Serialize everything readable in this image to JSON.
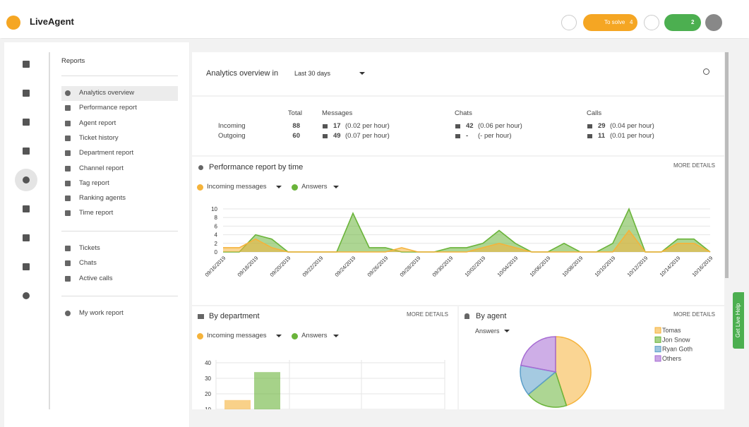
{
  "header": {
    "logo": "LiveAgent",
    "to_solve": "To solve",
    "to_solve_count": 4,
    "calls_count": 2
  },
  "sidebar": {
    "title": "Reports",
    "reports": [
      "Analytics overview",
      "Performance report",
      "Agent report",
      "Ticket history",
      "Department report",
      "Channel report",
      "Tag report",
      "Ranking agents",
      "Time report"
    ],
    "live": [
      "Tickets",
      "Chats",
      "Active calls"
    ],
    "personal": [
      "My work report"
    ]
  },
  "overview": {
    "title": "Analytics overview in",
    "period": "Last 30 days"
  },
  "stats": {
    "headers": [
      "Total",
      "Messages",
      "Chats",
      "Calls"
    ],
    "rows": [
      {
        "label": "Incoming",
        "total": 88,
        "messages": 17,
        "messages_rate": "(0.02 per hour)",
        "chats": 42,
        "chats_rate": "(0.06 per hour)",
        "calls": 29,
        "calls_rate": "(0.04 per hour)"
      },
      {
        "label": "Outgoing",
        "total": 60,
        "messages": 49,
        "messages_rate": "(0.07 per hour)",
        "chats": "-",
        "chats_rate": "(- per hour)",
        "calls": 11,
        "calls_rate": "(0.01 per hour)"
      }
    ]
  },
  "chart_data": [
    {
      "type": "area",
      "title": "Performance report by time",
      "link": "MORE DETAILS",
      "categories": [
        "09/16/2019",
        null,
        "09/18/2019",
        null,
        "09/20/2019",
        null,
        "09/22/2019",
        null,
        "09/24/2019",
        null,
        "09/26/2019",
        null,
        "09/28/2019",
        null,
        "09/30/2019",
        null,
        "10/02/2019",
        null,
        "10/04/2019",
        null,
        "10/06/2019",
        null,
        "10/08/2019",
        null,
        "10/10/2019",
        null,
        "10/12/2019",
        null,
        "10/14/2019",
        null,
        "10/16/2019"
      ],
      "series": [
        {
          "name": "Answers",
          "color": "#6ab43a",
          "values": [
            0,
            0,
            4,
            3,
            0,
            0,
            0,
            0,
            9,
            1,
            1,
            0,
            0,
            0,
            1,
            1,
            2,
            5,
            2,
            0,
            0,
            2,
            0,
            0,
            2,
            10,
            0,
            0,
            3,
            3,
            0
          ]
        },
        {
          "name": "Incoming messages",
          "color": "#f5b33a",
          "values": [
            1,
            1,
            3,
            1,
            0,
            0,
            0,
            0,
            0,
            0,
            0,
            1,
            0,
            0,
            0,
            0,
            1,
            2,
            1,
            0,
            0,
            0,
            0,
            0,
            0,
            5,
            0,
            0,
            2,
            2,
            0
          ]
        }
      ],
      "ylim": [
        0,
        10
      ],
      "yticks": [
        0,
        2,
        4,
        6,
        8,
        10
      ],
      "grid": true
    },
    {
      "type": "bar",
      "title": "By department",
      "link": "MORE DETAILS",
      "categories": [
        null
      ],
      "series": [
        {
          "name": "Incoming messages",
          "color": "#f5b33a",
          "values": [
            16
          ]
        },
        {
          "name": "Answers",
          "color": "#6ab43a",
          "values": [
            34
          ]
        }
      ],
      "ylim": [
        0,
        40
      ],
      "yticks": [
        10,
        20,
        30,
        40
      ],
      "grid": true
    },
    {
      "type": "pie",
      "title": "By agent",
      "link": "MORE DETAILS",
      "metric": "Answers",
      "categories": [
        "Tomas",
        "Jon Snow",
        "Ryan Goth",
        "Others"
      ],
      "values": [
        45,
        19,
        14,
        22
      ],
      "colors": [
        "#f5b33a",
        "#6ab43a",
        "#5b9ec9",
        "#a66bd3"
      ]
    }
  ],
  "live_help": "Get Live Help"
}
